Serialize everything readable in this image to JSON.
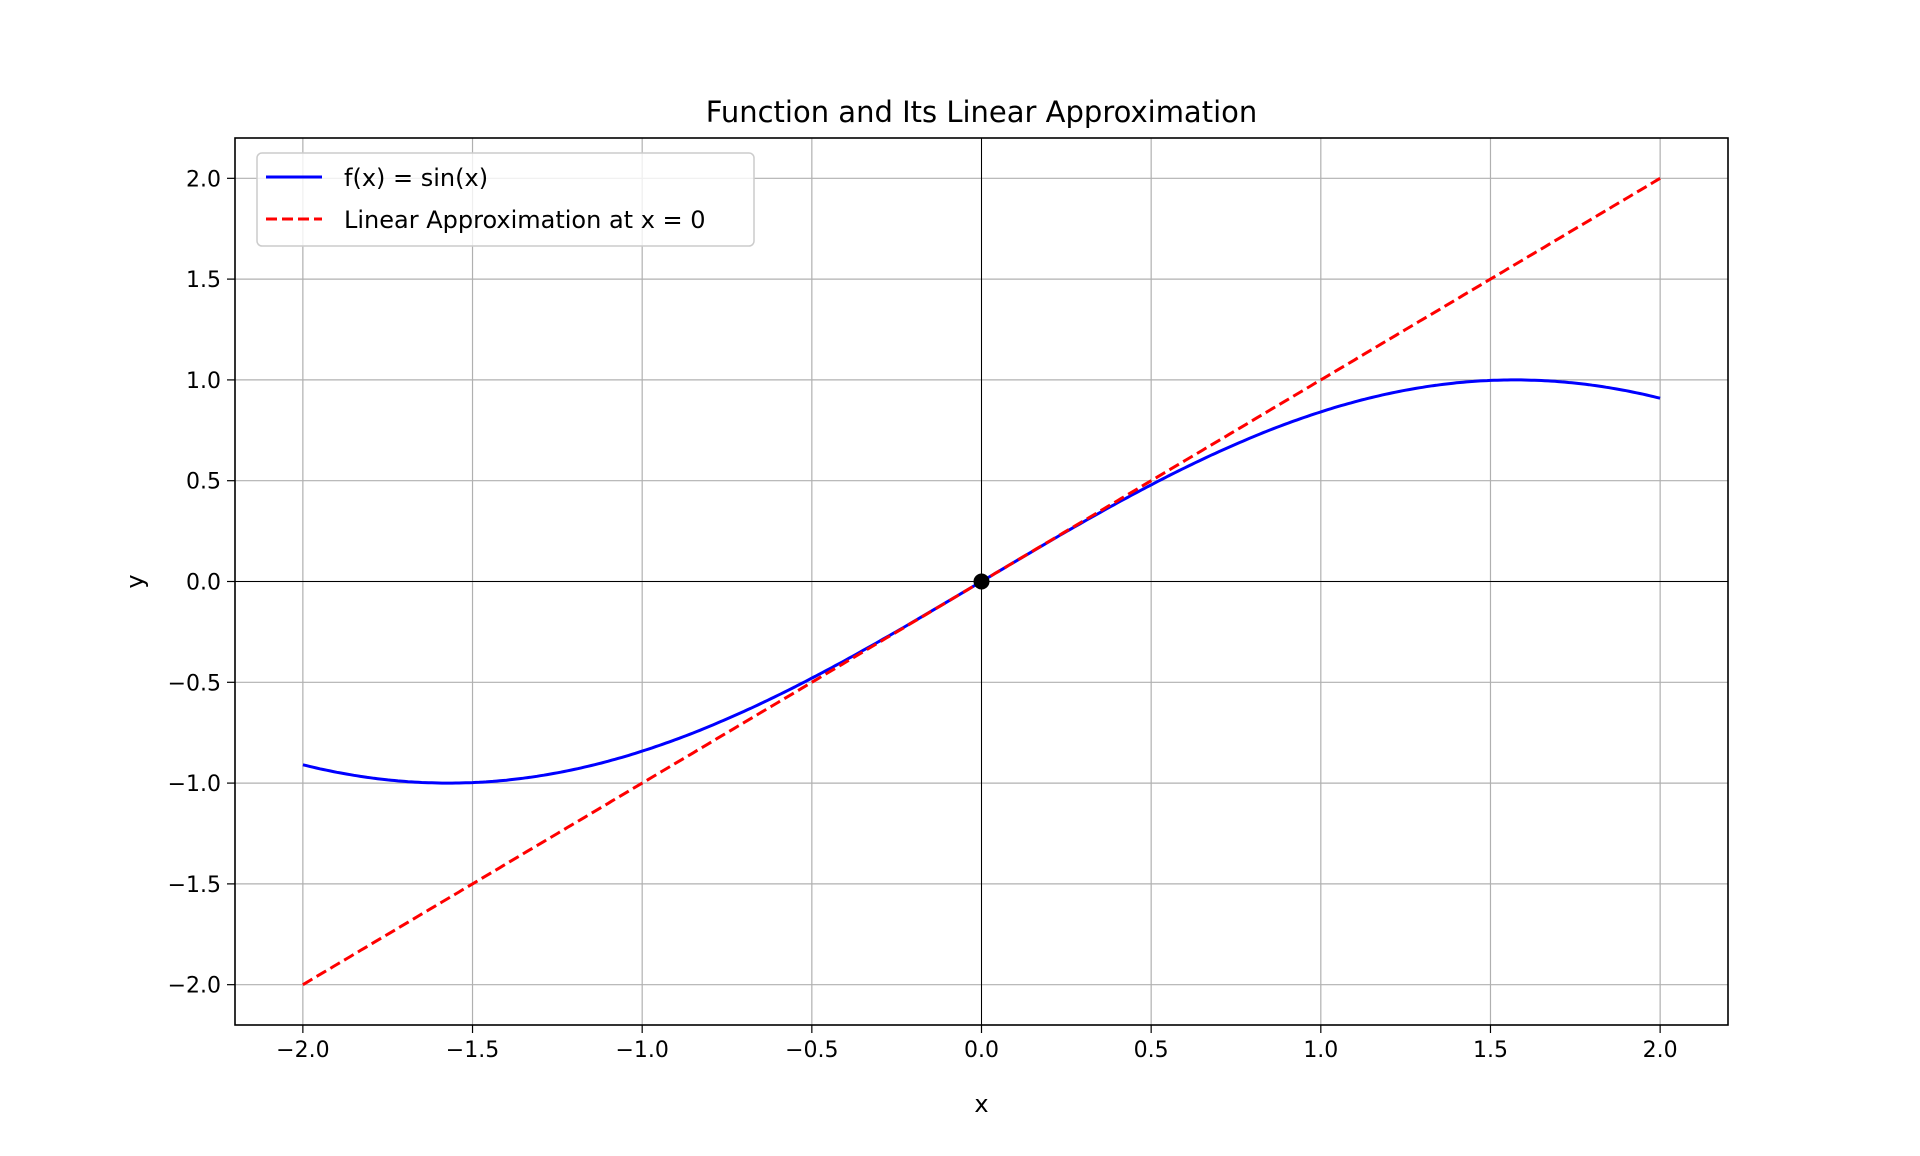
{
  "chart_data": {
    "type": "line",
    "title": "Function and Its Linear Approximation",
    "xlabel": "x",
    "ylabel": "y",
    "xlim": [
      -2.2,
      2.2
    ],
    "ylim": [
      -2.2,
      2.2
    ],
    "xticks": [
      -2.0,
      -1.5,
      -1.0,
      -0.5,
      0.0,
      0.5,
      1.0,
      1.5,
      2.0
    ],
    "yticks": [
      -2.0,
      -1.5,
      -1.0,
      -0.5,
      0.0,
      0.5,
      1.0,
      1.5,
      2.0
    ],
    "grid": true,
    "legend_placement": "upper-left",
    "series": [
      {
        "name": "f(x) = sin(x)",
        "function": "sin(x)",
        "x_range": [
          -2,
          2
        ],
        "color": "#0000ff",
        "style": "solid"
      },
      {
        "name": "Linear Approximation at x = 0",
        "function": "x",
        "x_range": [
          -2,
          2
        ],
        "color": "#ff0000",
        "style": "dashed"
      }
    ],
    "points": [
      {
        "x": 0,
        "y": 0,
        "color": "#000000"
      }
    ],
    "reference_lines": [
      {
        "axis": "x",
        "value": 0
      },
      {
        "axis": "y",
        "value": 0
      }
    ]
  }
}
